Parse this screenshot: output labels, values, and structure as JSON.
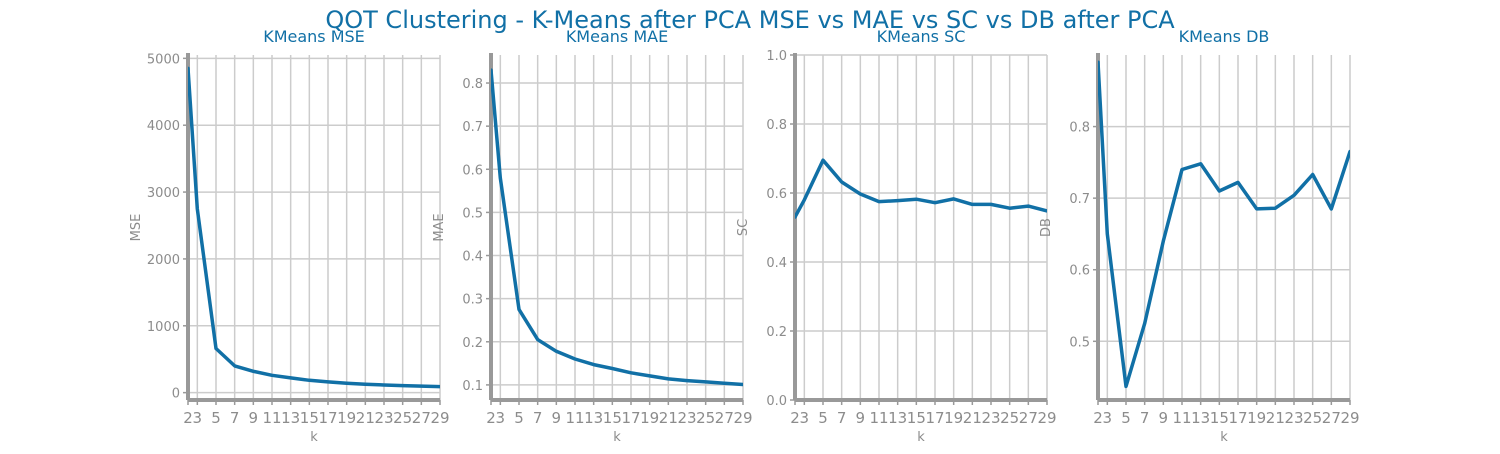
{
  "suptitle": "QOT Clustering - K-Means after PCA MSE vs MAE vs SC vs DB after PCA",
  "colors": {
    "line": "#1170a6",
    "title": "#1170a6",
    "grid": "#cccccc",
    "axis": "#999999",
    "tick_text": "#8c8c8c"
  },
  "chart_data": [
    {
      "type": "line",
      "title": "KMeans MSE",
      "xlabel": "k",
      "ylabel": "MSE",
      "grid": true,
      "x": [
        2,
        3,
        5,
        7,
        9,
        11,
        13,
        15,
        17,
        19,
        21,
        23,
        25,
        27,
        29
      ],
      "y": [
        4850,
        2750,
        660,
        400,
        320,
        260,
        220,
        185,
        160,
        140,
        125,
        115,
        105,
        98,
        90
      ],
      "ylim": [
        -110,
        5050
      ],
      "yticks": [
        0,
        1000,
        2000,
        3000,
        4000,
        5000
      ],
      "xticks": [
        2,
        3,
        5,
        7,
        9,
        11,
        13,
        15,
        17,
        19,
        21,
        23,
        25,
        27,
        29
      ]
    },
    {
      "type": "line",
      "title": "KMeans MAE",
      "xlabel": "k",
      "ylabel": "MAE",
      "grid": true,
      "x": [
        2,
        3,
        5,
        7,
        9,
        11,
        13,
        15,
        17,
        19,
        21,
        23,
        25,
        27,
        29
      ],
      "y": [
        0.83,
        0.58,
        0.275,
        0.205,
        0.178,
        0.16,
        0.147,
        0.138,
        0.128,
        0.121,
        0.114,
        0.11,
        0.107,
        0.104,
        0.101
      ],
      "ylim": [
        0.065,
        0.865
      ],
      "yticks": [
        0.1,
        0.2,
        0.3,
        0.4,
        0.5,
        0.6,
        0.7,
        0.8
      ],
      "xticks": [
        2,
        3,
        5,
        7,
        9,
        11,
        13,
        15,
        17,
        19,
        21,
        23,
        25,
        27,
        29
      ]
    },
    {
      "type": "line",
      "title": "KMeans SC",
      "xlabel": "k",
      "ylabel": "SC",
      "grid": true,
      "x": [
        2,
        3,
        5,
        7,
        9,
        11,
        13,
        15,
        17,
        19,
        21,
        23,
        25,
        27,
        29
      ],
      "y": [
        0.53,
        0.58,
        0.695,
        0.632,
        0.597,
        0.575,
        0.578,
        0.582,
        0.572,
        0.583,
        0.567,
        0.567,
        0.556,
        0.562,
        0.548
      ],
      "ylim": [
        0.0,
        1.0
      ],
      "yticks": [
        0.0,
        0.2,
        0.4,
        0.6,
        0.8,
        1.0
      ],
      "xticks": [
        2,
        3,
        5,
        7,
        9,
        11,
        13,
        15,
        17,
        19,
        21,
        23,
        25,
        27,
        29
      ]
    },
    {
      "type": "line",
      "title": "KMeans DB",
      "xlabel": "k",
      "ylabel": "DB",
      "grid": true,
      "x": [
        2,
        3,
        5,
        7,
        9,
        11,
        13,
        15,
        17,
        19,
        21,
        23,
        25,
        27,
        29
      ],
      "y": [
        0.89,
        0.65,
        0.437,
        0.525,
        0.64,
        0.74,
        0.748,
        0.71,
        0.722,
        0.685,
        0.686,
        0.704,
        0.733,
        0.685,
        0.765
      ],
      "ylim": [
        0.418,
        0.9
      ],
      "yticks": [
        0.5,
        0.6,
        0.7,
        0.8
      ],
      "xticks": [
        2,
        3,
        5,
        7,
        9,
        11,
        13,
        15,
        17,
        19,
        21,
        23,
        25,
        27,
        29
      ]
    }
  ]
}
